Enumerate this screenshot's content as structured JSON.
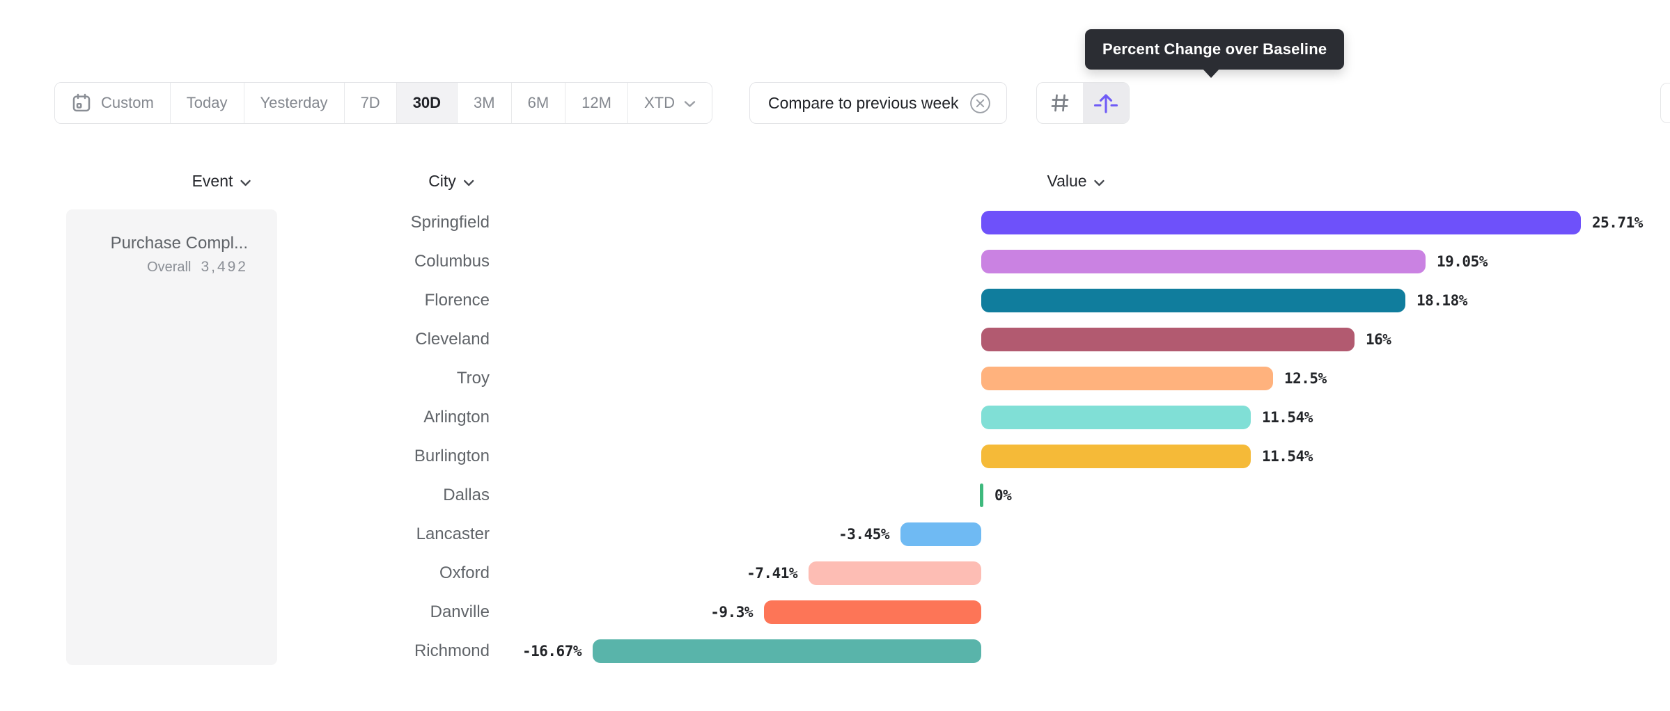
{
  "tooltip": {
    "text": "Percent Change over Baseline"
  },
  "toolbar": {
    "date_ranges": [
      {
        "label": "Custom",
        "selected": false,
        "icon": "calendar-icon"
      },
      {
        "label": "Today",
        "selected": false
      },
      {
        "label": "Yesterday",
        "selected": false
      },
      {
        "label": "7D",
        "selected": false
      },
      {
        "label": "30D",
        "selected": true
      },
      {
        "label": "3M",
        "selected": false
      },
      {
        "label": "6M",
        "selected": false
      },
      {
        "label": "12M",
        "selected": false
      },
      {
        "label": "XTD",
        "selected": false,
        "has_chevron": true
      }
    ],
    "compare_chip": {
      "label": "Compare to previous week",
      "icon": "remove-circle-icon"
    },
    "value_mode_toggle": [
      {
        "name": "absolute-numbers",
        "icon": "hash-icon",
        "selected": false
      },
      {
        "name": "percent-change-over-baseline",
        "icon": "percent-change-arrow-icon",
        "selected": true
      }
    ]
  },
  "columns": {
    "event": "Event",
    "city": "City",
    "value": "Value"
  },
  "event_card": {
    "title": "Purchase Compl...",
    "metric_label": "Overall",
    "metric_value": "3,492"
  },
  "chart_data": {
    "type": "bar",
    "orientation": "horizontal",
    "title": "Percent Change over Baseline",
    "xlabel": "Value",
    "ylabel": "City",
    "xlim": [
      -17,
      29.5
    ],
    "grid": false,
    "legend": "none",
    "categories": [
      "Springfield",
      "Columbus",
      "Florence",
      "Cleveland",
      "Troy",
      "Arlington",
      "Burlington",
      "Dallas",
      "Lancaster",
      "Oxford",
      "Danville",
      "Richmond"
    ],
    "values": [
      25.71,
      19.05,
      18.18,
      16,
      12.5,
      11.54,
      11.54,
      0,
      -3.45,
      -7.41,
      -9.3,
      -16.67
    ],
    "value_labels": [
      "25.71%",
      "19.05%",
      "18.18%",
      "16%",
      "12.5%",
      "11.54%",
      "11.54%",
      "0%",
      "-3.45%",
      "-7.41%",
      "-9.3%",
      "-16.67%"
    ],
    "bar_colors": [
      "#6e51fa",
      "#ca82e2",
      "#107d9d",
      "#b25a70",
      "#ffb27d",
      "#80dfd6",
      "#f5ba38",
      "#3eb97d",
      "#6fbaf3",
      "#fdbdb4",
      "#fd7557",
      "#59b4aa"
    ]
  },
  "colors": {
    "accent_purple": "#6f5bf6",
    "tooltip_bg": "#2b2d33",
    "zero_tick_green": "#3eb97d",
    "muted_text": "#84888f",
    "dark_text": "#1f2126"
  }
}
